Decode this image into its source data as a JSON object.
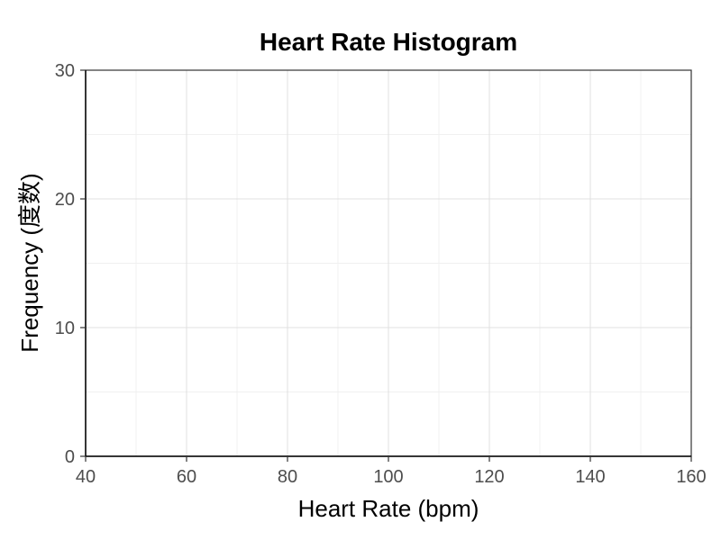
{
  "chart_data": {
    "type": "bar",
    "title": "Heart Rate Histogram",
    "xlabel": "Heart Rate (bpm)",
    "ylabel": "Frequency (度数)",
    "xlim": [
      40,
      160
    ],
    "ylim": [
      0,
      30
    ],
    "x_ticks": [
      "40",
      "60",
      "80",
      "100",
      "120",
      "140",
      "160"
    ],
    "y_ticks": [
      "0",
      "10",
      "20",
      "30"
    ],
    "bins": [],
    "grid": true
  }
}
